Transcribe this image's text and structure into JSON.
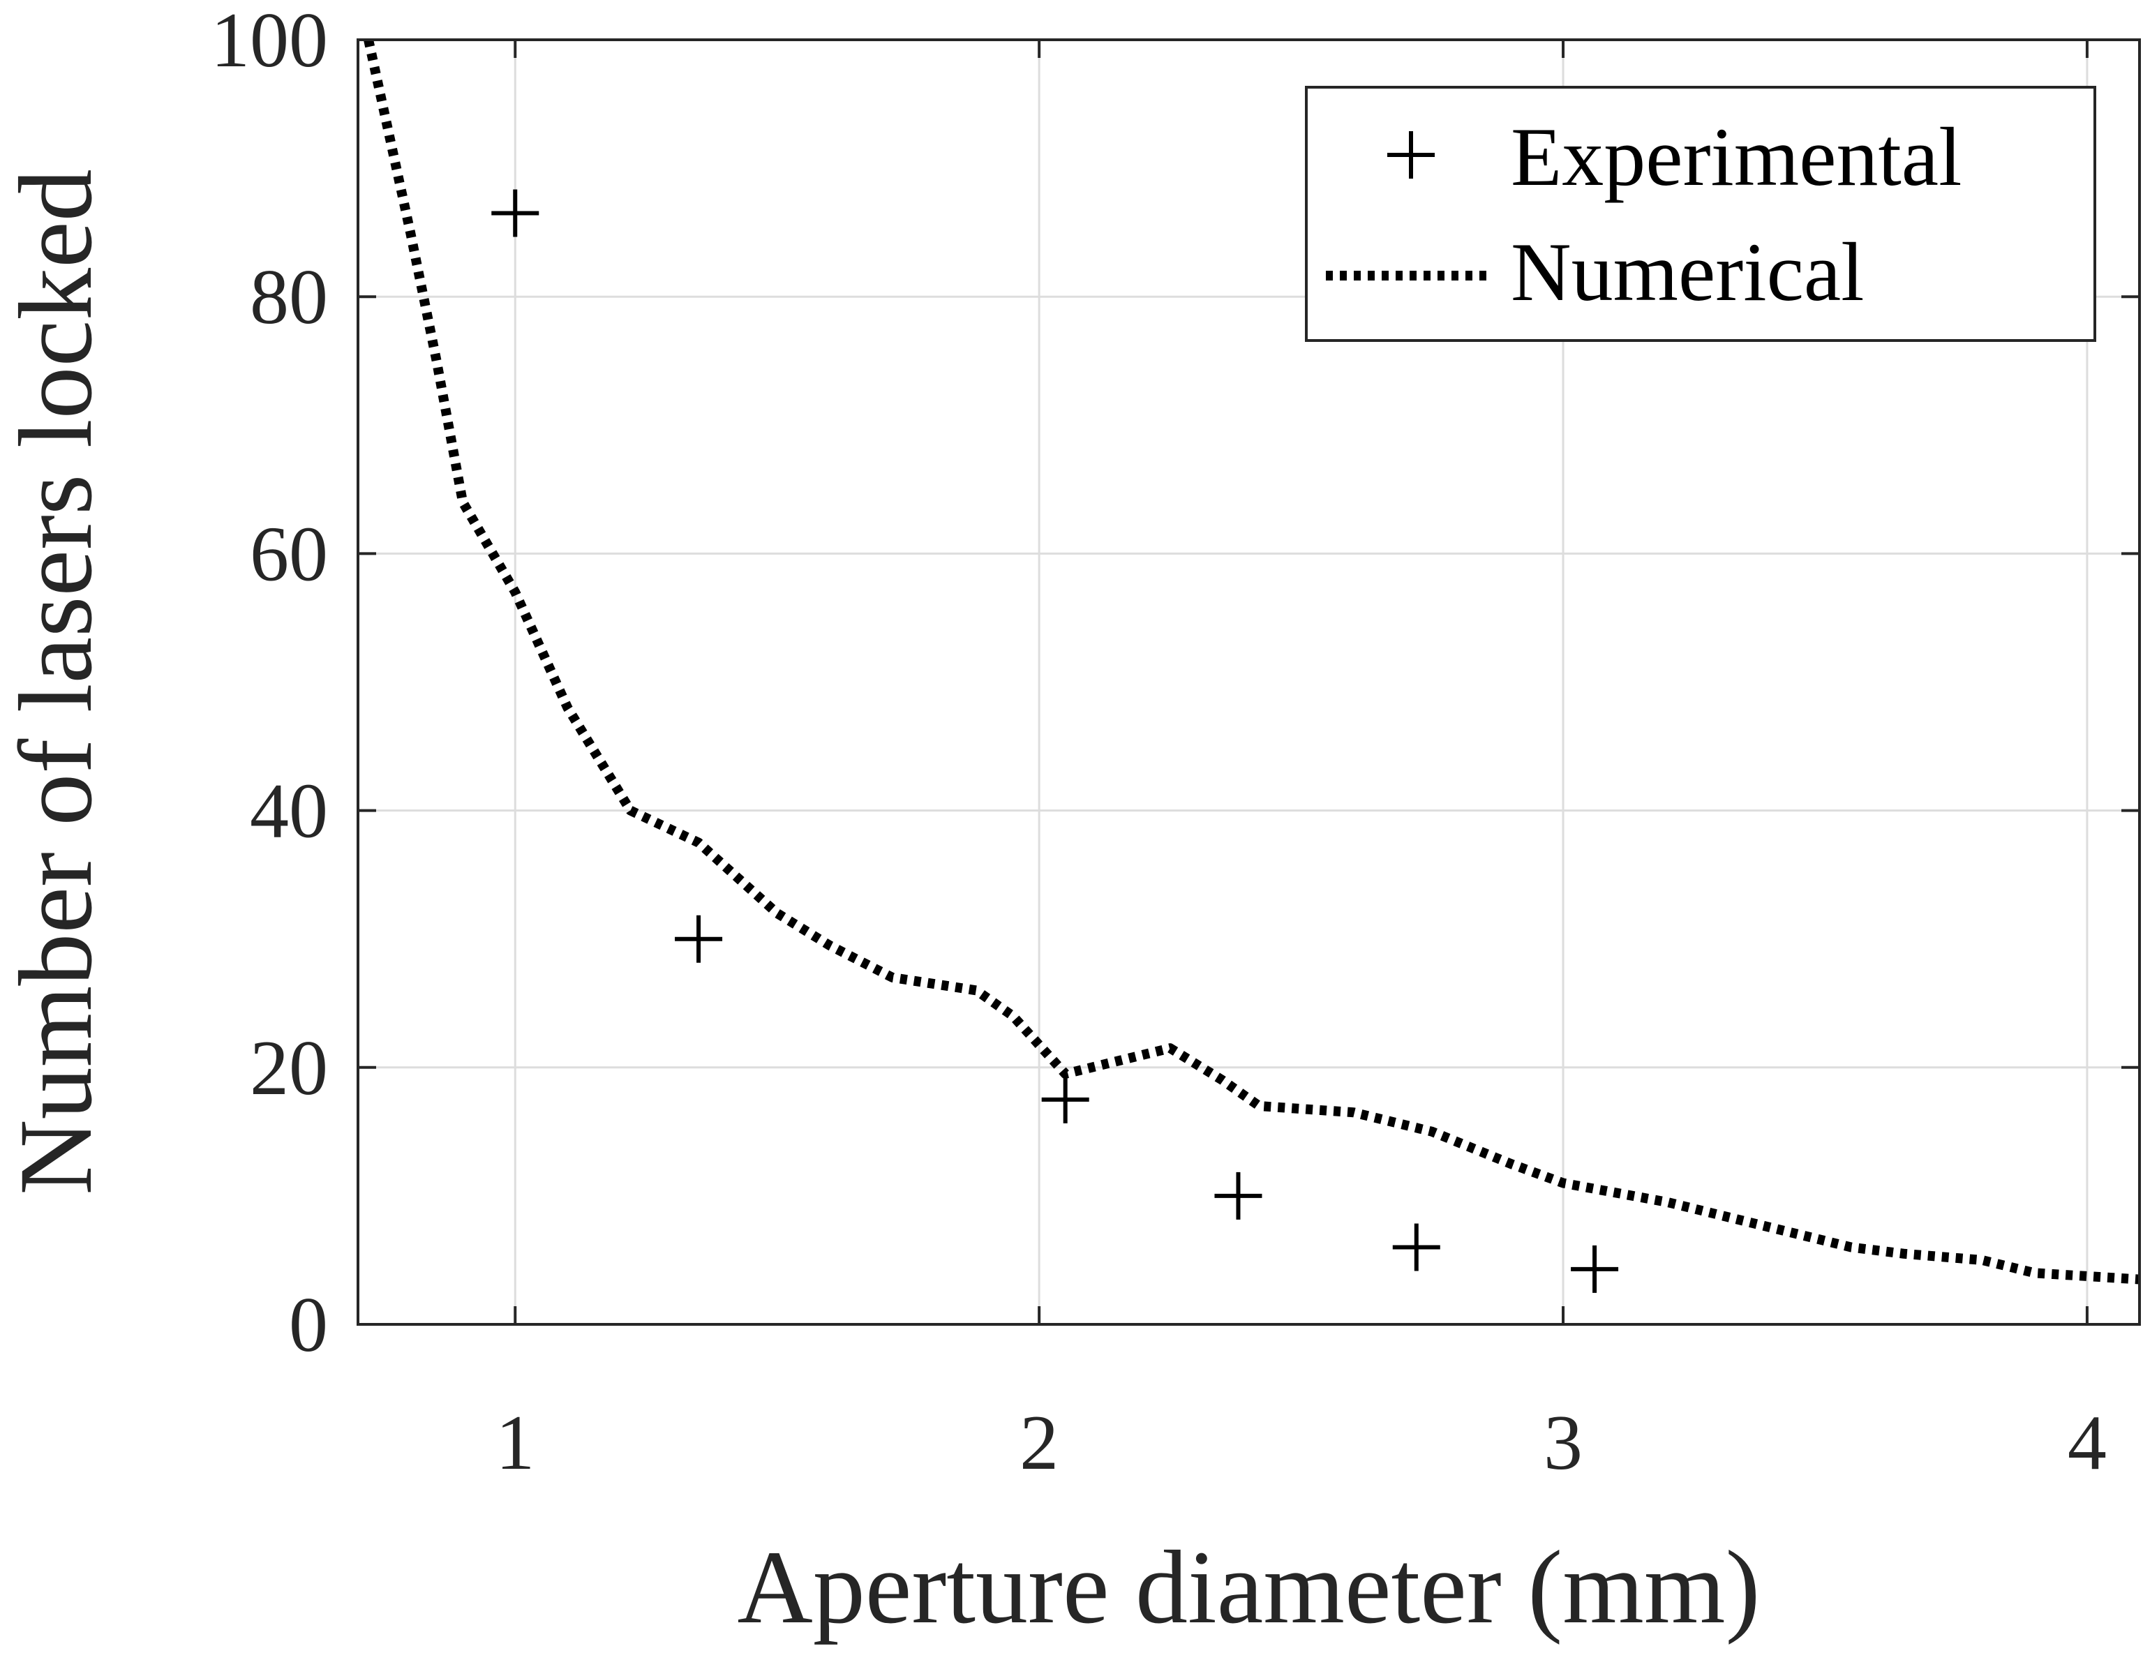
{
  "chart_data": {
    "type": "scatter",
    "title": "",
    "xlabel": "Aperture diameter (mm)",
    "ylabel": "Number of lasers locked",
    "xlim": [
      0.7,
      4.1
    ],
    "ylim": [
      0,
      100
    ],
    "xticks": [
      1,
      2,
      3,
      4
    ],
    "xtick_labels": [
      "1",
      "2",
      "3",
      "4"
    ],
    "yticks": [
      0,
      20,
      40,
      60,
      80,
      100
    ],
    "ytick_labels": [
      "0",
      "20",
      "40",
      "60",
      "80",
      "100"
    ],
    "grid": true,
    "legend_position": "top-right",
    "series": [
      {
        "name": "Experimental",
        "style": "markers-plus",
        "color": "#000000",
        "x": [
          1.0,
          1.35,
          2.05,
          2.38,
          2.72,
          3.06
        ],
        "y": [
          86.5,
          30,
          17.5,
          10,
          6,
          4.3
        ]
      },
      {
        "name": "Numerical",
        "style": "dotted-line",
        "color": "#000000",
        "x": [
          0.72,
          0.8,
          0.85,
          0.9,
          1.0,
          1.1,
          1.22,
          1.35,
          1.5,
          1.6,
          1.72,
          1.88,
          1.95,
          2.05,
          2.1,
          2.25,
          2.35,
          2.42,
          2.6,
          2.75,
          2.9,
          3.0,
          3.2,
          3.35,
          3.45,
          3.55,
          3.65,
          3.8,
          3.9,
          4.1
        ],
        "y": [
          100,
          85,
          75,
          64,
          57,
          48,
          40,
          37.5,
          32,
          29.5,
          27,
          26,
          24,
          19.5,
          20,
          21.5,
          19,
          17,
          16.5,
          15,
          12.5,
          11,
          9.5,
          8,
          7,
          6,
          5.5,
          5,
          4,
          3.5
        ]
      }
    ]
  }
}
